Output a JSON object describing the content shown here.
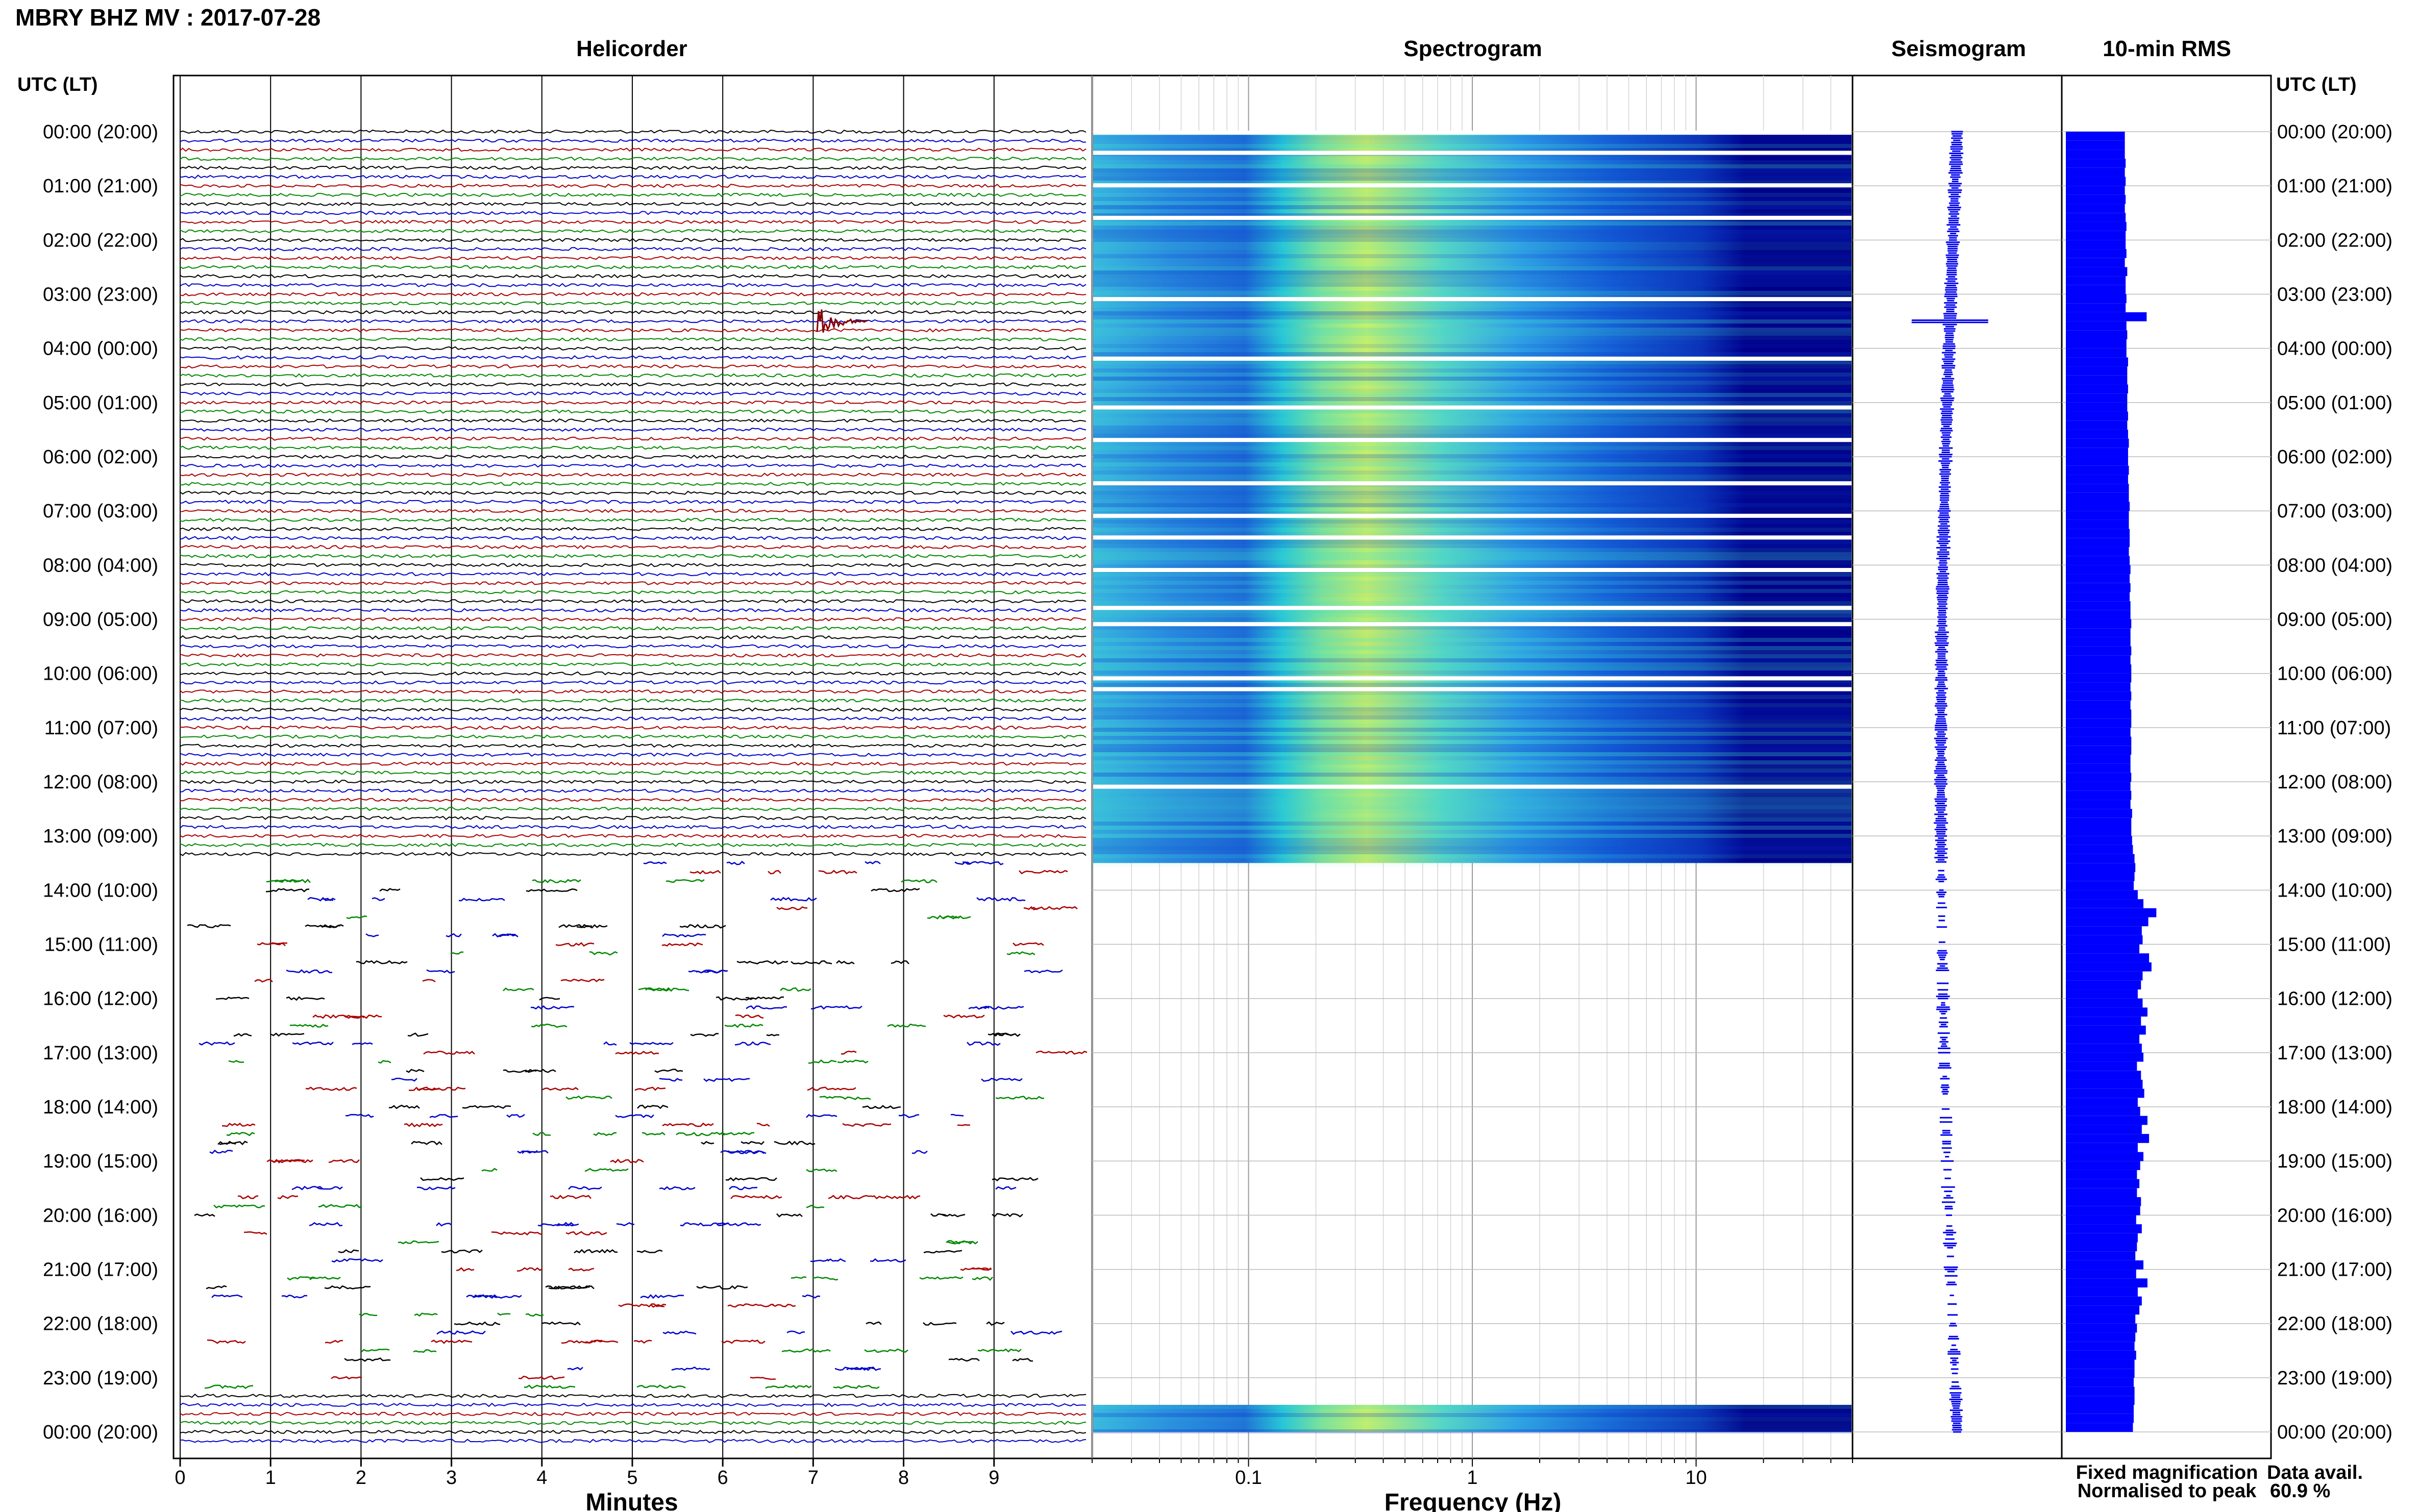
{
  "title": "MBRY BHZ MV : 2017-07-28",
  "panels": {
    "helicorder": "Helicorder",
    "spectrogram": "Spectrogram",
    "seismogram": "Seismogram",
    "rms": "10-min RMS"
  },
  "axis_labels": {
    "time_header": "UTC (LT)",
    "minutes": "Minutes",
    "frequency": "Frequency (Hz)"
  },
  "legend": {
    "fixed": "Fixed magnification",
    "normalised": "Normalised to peak",
    "fixed_color": "#0000ff",
    "normalised_color": "#ff0000"
  },
  "data_availability": {
    "label": "Data avail.",
    "value": "60.9 %"
  },
  "colors": {
    "trace_colors": [
      "#000000",
      "#0000cc",
      "#aa0000",
      "#008800"
    ],
    "rms_bar": "#0000ff",
    "spectrogram_low": "#00008b",
    "spectrogram_high": "#ffff00"
  },
  "chart_data": [
    {
      "type": "line",
      "name": "helicorder",
      "x_ticks": [
        "0",
        "1",
        "2",
        "3",
        "4",
        "5",
        "6",
        "7",
        "8",
        "9"
      ],
      "xlim": [
        0,
        10
      ],
      "time_labels": [
        "00:00 (20:00)",
        "01:00 (21:00)",
        "02:00 (22:00)",
        "03:00 (23:00)",
        "04:00 (00:00)",
        "05:00 (01:00)",
        "06:00 (02:00)",
        "07:00 (03:00)",
        "08:00 (04:00)",
        "09:00 (05:00)",
        "10:00 (06:00)",
        "11:00 (07:00)",
        "12:00 (08:00)",
        "13:00 (09:00)",
        "14:00 (10:00)",
        "15:00 (11:00)",
        "16:00 (12:00)",
        "17:00 (13:00)",
        "18:00 (14:00)",
        "19:00 (15:00)",
        "20:00 (16:00)",
        "21:00 (17:00)",
        "22:00 (18:00)",
        "23:00 (19:00)",
        "00:00 (20:00)"
      ],
      "continuous_until_hour": 13.5,
      "event_hour": 3.5,
      "event_minute": 7.1
    },
    {
      "type": "heatmap",
      "name": "spectrogram",
      "x_scale": "log",
      "xlim": [
        0.02,
        50
      ],
      "x_ticks": [
        "0.1",
        "1",
        "10"
      ],
      "tick_values": [
        0.1,
        1,
        10
      ],
      "coverage_hours": [
        [
          0,
          13.5
        ],
        [
          23.5,
          24
        ]
      ]
    },
    {
      "type": "line",
      "name": "seismogram",
      "peak_hour": 3.5
    },
    {
      "type": "bar",
      "name": "10-min RMS",
      "values": [
        7.3,
        7.3,
        7.3,
        7.4,
        7.3,
        7.4,
        7.3,
        7.4,
        7.3,
        7.4,
        7.5,
        7.4,
        7.4,
        7.5,
        7.3,
        7.6,
        7.4,
        7.4,
        7.5,
        7.4,
        10,
        7.5,
        7.6,
        7.5,
        7.5,
        7.7,
        7.6,
        7.6,
        7.7,
        7.6,
        7.6,
        7.7,
        7.6,
        7.7,
        7.8,
        7.7,
        7.7,
        7.8,
        7.7,
        7.8,
        7.8,
        7.9,
        7.8,
        7.8,
        7.9,
        7.9,
        7.8,
        7.9,
        8,
        7.9,
        8,
        7.9,
        8,
        8,
        8.1,
        8,
        8,
        8.1,
        8,
        8.1,
        8.1,
        8,
        8.1,
        8,
        8.1,
        8.1,
        8,
        8.1,
        8.1,
        8,
        8,
        8.1,
        8,
        8.1,
        8,
        8.2,
        8.1,
        8.1,
        8.2,
        8.3,
        8.5,
        8.6,
        8.5,
        8.4,
        8.9,
        9.6,
        11.2,
        10.2,
        9.4,
        9.5,
        9.1,
        10.3,
        10.6,
        9.5,
        9.3,
        8.9,
        9.5,
        10.1,
        9.3,
        9.9,
        9.1,
        9.4,
        9.6,
        8.8,
        9.3,
        9.5,
        9.7,
        8.9,
        9.2,
        10.1,
        9.4,
        10.3,
        8.9,
        9.6,
        9.2,
        8.8,
        9.1,
        8.8,
        9.3,
        9.2,
        8.7,
        9.4,
        8.9,
        8.8,
        8.6,
        9.6,
        8.7,
        10.1,
        8.9,
        9.4,
        9.1,
        8.6,
        8.8,
        8.6,
        8.5,
        8.7,
        8.5,
        8.5,
        8.4,
        8.5,
        8.5,
        8.4,
        8.4,
        8.3
      ],
      "max_value": 12
    }
  ]
}
